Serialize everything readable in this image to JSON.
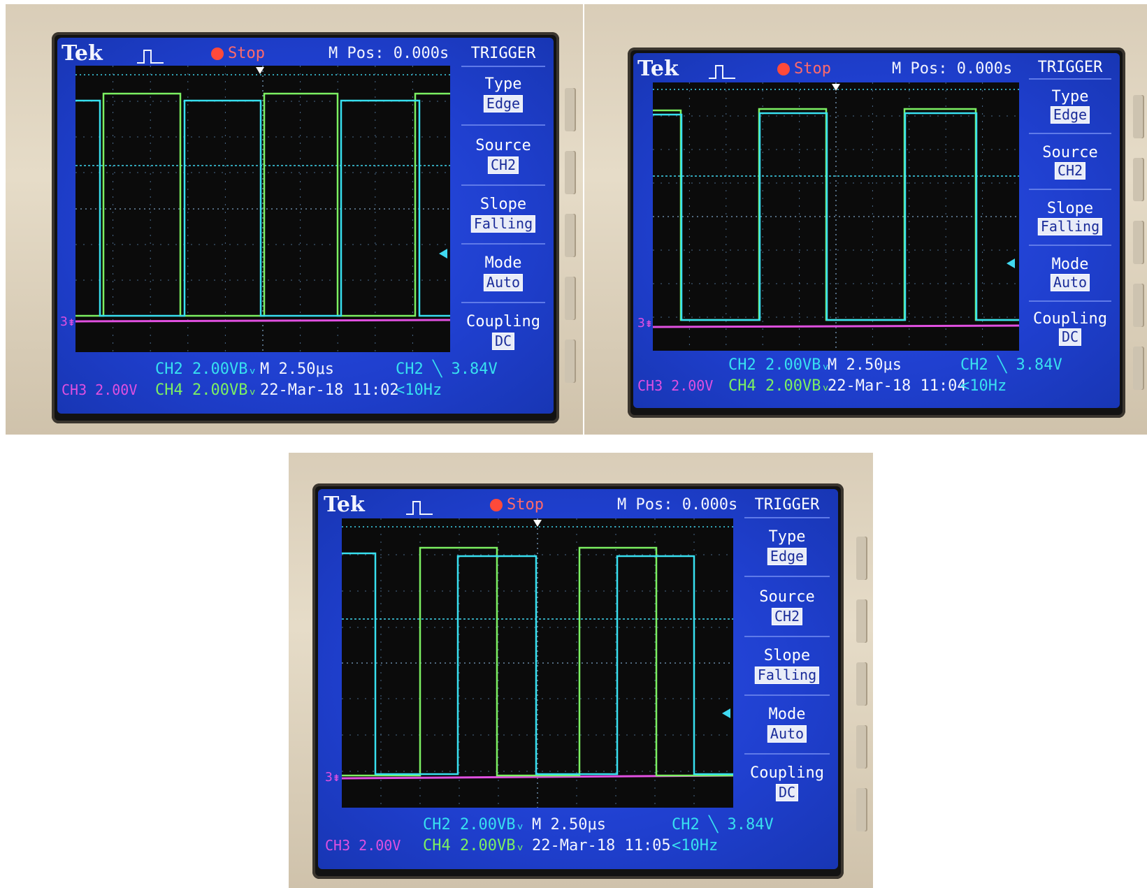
{
  "scopes": [
    {
      "brand": "Tek",
      "run_state": "Stop",
      "m_pos": "M Pos: 0.000s",
      "trigger_menu": {
        "title": "TRIGGER",
        "items": [
          {
            "label": "Type",
            "value": "Edge"
          },
          {
            "label": "Source",
            "value": "CH2"
          },
          {
            "label": "Slope",
            "value": "Falling"
          },
          {
            "label": "Mode",
            "value": "Auto"
          },
          {
            "label": "Coupling",
            "value": "DC"
          }
        ]
      },
      "readouts": {
        "ch2": "CH2  2.00VBᵥ",
        "ch4": "CH4  2.00VBᵥ",
        "ch3": "CH3  2.00V",
        "timebase": "M 2.50μs",
        "datetime": "22-Mar-18 11:02",
        "trigger_level": "CH2 ╲ 3.84V",
        "frequency": "<10Hz"
      },
      "traces": {
        "ch2_cyan_edges": [
          0,
          0.296,
          1,
          0.524,
          1,
          0.74,
          1,
          0.928
        ],
        "ch4_green_edges": [
          0.08,
          0.276,
          0.504,
          0.712,
          0.918
        ]
      }
    },
    {
      "brand": "Tek",
      "run_state": "Stop",
      "m_pos": "M Pos: 0.000s",
      "trigger_menu": {
        "title": "TRIGGER",
        "items": [
          {
            "label": "Type",
            "value": "Edge"
          },
          {
            "label": "Source",
            "value": "CH2"
          },
          {
            "label": "Slope",
            "value": "Falling"
          },
          {
            "label": "Mode",
            "value": "Auto"
          },
          {
            "label": "Coupling",
            "value": "DC"
          }
        ]
      },
      "readouts": {
        "ch2": "CH2  2.00VBᵥ",
        "ch4": "CH4  2.00VBᵥ",
        "ch3": "CH3  2.00V",
        "timebase": "M 2.50μs",
        "datetime": "22-Mar-18 11:04",
        "trigger_level": "CH2 ╲ 3.84V",
        "frequency": "<10Hz"
      }
    },
    {
      "brand": "Tek",
      "run_state": "Stop",
      "m_pos": "M Pos: 0.000s",
      "trigger_menu": {
        "title": "TRIGGER",
        "items": [
          {
            "label": "Type",
            "value": "Edge"
          },
          {
            "label": "Source",
            "value": "CH2"
          },
          {
            "label": "Slope",
            "value": "Falling"
          },
          {
            "label": "Mode",
            "value": "Auto"
          },
          {
            "label": "Coupling",
            "value": "DC"
          }
        ]
      },
      "readouts": {
        "ch2": "CH2  2.00VBᵥ",
        "ch4": "CH4  2.00VBᵥ",
        "ch3": "CH3  2.00V",
        "timebase": "M 2.50μs",
        "datetime": "22-Mar-18 11:05",
        "trigger_level": "CH2 ╲ 3.84V",
        "frequency": "<10Hz"
      }
    }
  ]
}
